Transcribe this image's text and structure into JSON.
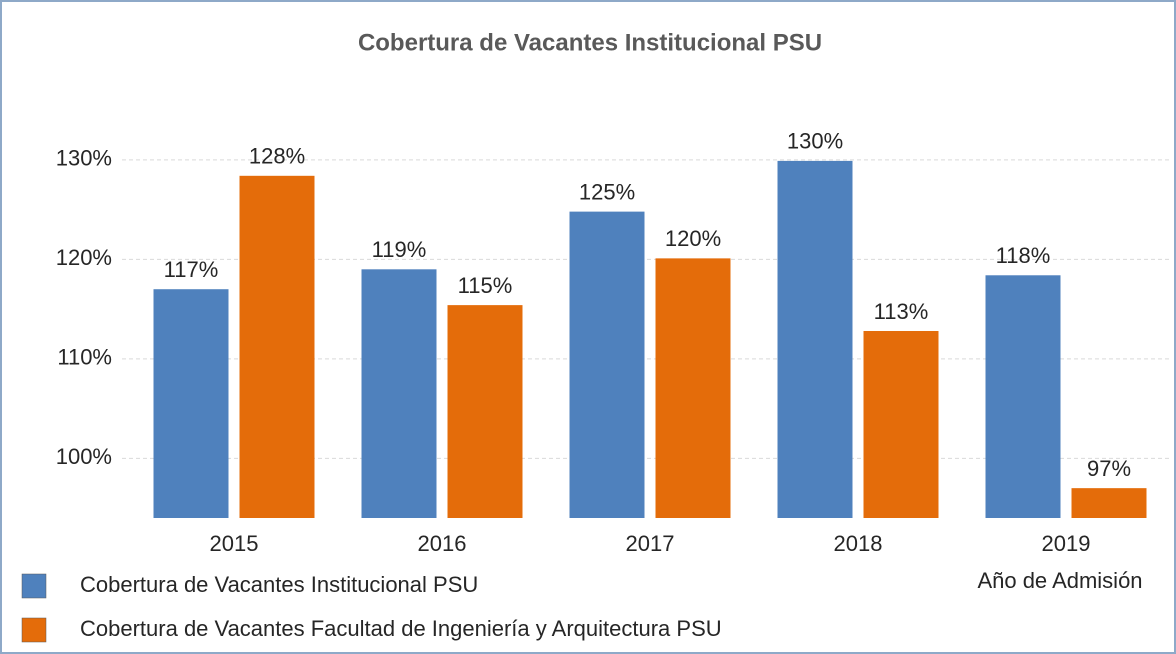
{
  "chart_data": {
    "type": "bar",
    "title": "Cobertura de Vacantes Institucional PSU",
    "x_label": "Año de Admisión",
    "categories": [
      "2015",
      "2016",
      "2017",
      "2018",
      "2019"
    ],
    "series": [
      {
        "name": "Cobertura de Vacantes Institucional PSU",
        "color": "#4f81bd",
        "values": [
          117,
          119,
          124.8,
          129.9,
          118.4
        ],
        "value_labels": [
          "117%",
          "119%",
          "125%",
          "130%",
          "118%"
        ]
      },
      {
        "name": "Cobertura de Vacantes Facultad de Ingeniería y Arquitectura PSU",
        "color": "#e46c0a",
        "values": [
          128.4,
          115.4,
          120.1,
          112.8,
          97
        ],
        "value_labels": [
          "128%",
          "115%",
          "120%",
          "113%",
          "97%"
        ]
      }
    ],
    "ylim": [
      94,
      132
    ],
    "yticks": [
      {
        "value": 100,
        "label": "100%"
      },
      {
        "value": 110,
        "label": "110%"
      },
      {
        "value": 120,
        "label": "120%"
      },
      {
        "value": 130,
        "label": "130%"
      }
    ],
    "grid": true,
    "legend": "bottom-left"
  }
}
